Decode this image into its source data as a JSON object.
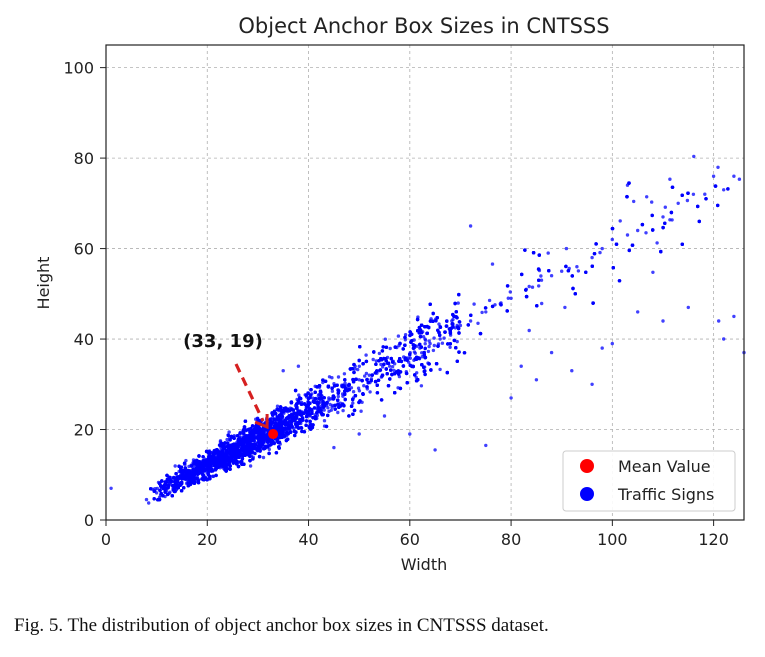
{
  "chart_data": {
    "type": "scatter",
    "title": "Object Anchor Box Sizes in CNTSSS",
    "xlabel": "Width",
    "ylabel": "Height",
    "xlim": [
      0,
      126
    ],
    "ylim": [
      0,
      105
    ],
    "xticks": [
      "0",
      "20",
      "40",
      "60",
      "80",
      "100",
      "120"
    ],
    "yticks": [
      "0",
      "20",
      "40",
      "60",
      "80",
      "100"
    ],
    "grid": true,
    "legend_position": "lower-right",
    "legend": [
      "Mean Value",
      "Traffic Signs"
    ],
    "series": [
      {
        "name": "Traffic Signs",
        "color": "#0000ff",
        "point_count_approx": 6000,
        "trend": "height ≈ 0.61 × width (approx.), dense between width 8 and 70, sparse up to 126",
        "values": [
          [
            8,
            4.5
          ],
          [
            10,
            6
          ],
          [
            12,
            7.5
          ],
          [
            14,
            8.5
          ],
          [
            16,
            10
          ],
          [
            18,
            11
          ],
          [
            20,
            12.5
          ],
          [
            22,
            14
          ],
          [
            24,
            15
          ],
          [
            26,
            16.5
          ],
          [
            28,
            17.5
          ],
          [
            30,
            19
          ],
          [
            32,
            20
          ],
          [
            34,
            21
          ],
          [
            36,
            22.5
          ],
          [
            38,
            24
          ],
          [
            40,
            25
          ],
          [
            42,
            26
          ],
          [
            44,
            27
          ],
          [
            46,
            28.5
          ],
          [
            48,
            30
          ],
          [
            50,
            31
          ],
          [
            52,
            32
          ],
          [
            54,
            33
          ],
          [
            56,
            34
          ],
          [
            58,
            35.5
          ],
          [
            60,
            36.5
          ],
          [
            62,
            38
          ],
          [
            64,
            39
          ],
          [
            66,
            40
          ],
          [
            68,
            42
          ],
          [
            70,
            43
          ],
          [
            72,
            44
          ],
          [
            75,
            46
          ],
          [
            78,
            48
          ],
          [
            80,
            49
          ],
          [
            83,
            51
          ],
          [
            86,
            53
          ],
          [
            88,
            54
          ],
          [
            90,
            55
          ],
          [
            93,
            56
          ],
          [
            96,
            58
          ],
          [
            98,
            60
          ],
          [
            100,
            62
          ],
          [
            103,
            63
          ],
          [
            105,
            64
          ],
          [
            110,
            67
          ],
          [
            113,
            70
          ],
          [
            116,
            72
          ],
          [
            120,
            76
          ],
          [
            122,
            73
          ],
          [
            124,
            76
          ],
          [
            126,
            37
          ],
          [
            121,
            44
          ],
          [
            124,
            45
          ],
          [
            122,
            40
          ],
          [
            115,
            47
          ],
          [
            110,
            44
          ],
          [
            105,
            46
          ],
          [
            100,
            39
          ],
          [
            98,
            38
          ],
          [
            96,
            30
          ],
          [
            92,
            33
          ],
          [
            88,
            37
          ],
          [
            85,
            31
          ],
          [
            82,
            34
          ],
          [
            80,
            27
          ],
          [
            75,
            16.5
          ],
          [
            72,
            65
          ],
          [
            103,
            74
          ],
          [
            65,
            15.5
          ],
          [
            60,
            19
          ],
          [
            1,
            7
          ],
          [
            45,
            16
          ],
          [
            50,
            19
          ],
          [
            55,
            23
          ],
          [
            35,
            33
          ],
          [
            38,
            34
          ]
        ]
      },
      {
        "name": "Mean Value",
        "color": "#ff0000",
        "values": [
          [
            33,
            19
          ]
        ]
      }
    ],
    "annotations": [
      {
        "text": "(33, 19)",
        "at": [
          33,
          19
        ]
      }
    ]
  },
  "caption": "Fig. 5.  The distribution of object anchor box sizes in CNTSSS dataset."
}
